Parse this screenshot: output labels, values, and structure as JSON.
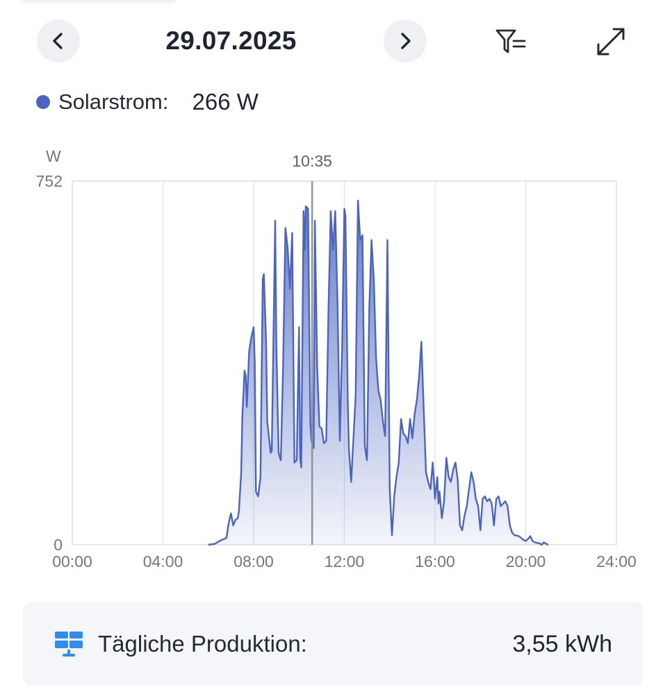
{
  "header": {
    "date": "29.07.2025"
  },
  "legend": {
    "label": "Solarstrom:",
    "value": "266 W",
    "color": "#4a64c0"
  },
  "icons": {
    "prev": "chevron-left-icon",
    "next": "chevron-right-icon",
    "filter": "filter-icon",
    "expand": "expand-icon",
    "solar": "solar-panel-icon"
  },
  "summary": {
    "label": "Tägliche Produktion:",
    "value": "3,55 kWh"
  },
  "chart_data": {
    "type": "area",
    "ylabel": "W",
    "ylim": [
      0,
      752
    ],
    "yticks": [
      "0",
      "752"
    ],
    "xlim": [
      0,
      24
    ],
    "xticks": [
      "00:00",
      "04:00",
      "08:00",
      "12:00",
      "16:00",
      "20:00",
      "24:00"
    ],
    "cursor": {
      "x": 10.58,
      "label": "10:35"
    },
    "grid": true,
    "series": [
      {
        "color": "#4a64c0",
        "points": [
          [
            6.0,
            0
          ],
          [
            6.3,
            2
          ],
          [
            6.5,
            8
          ],
          [
            6.8,
            14
          ],
          [
            6.9,
            45
          ],
          [
            7.0,
            65
          ],
          [
            7.1,
            40
          ],
          [
            7.2,
            52
          ],
          [
            7.3,
            55
          ],
          [
            7.35,
            70
          ],
          [
            7.45,
            150
          ],
          [
            7.5,
            265
          ],
          [
            7.6,
            360
          ],
          [
            7.65,
            350
          ],
          [
            7.7,
            285
          ],
          [
            7.8,
            400
          ],
          [
            7.9,
            430
          ],
          [
            8.0,
            450
          ],
          [
            8.05,
            380
          ],
          [
            8.1,
            110
          ],
          [
            8.2,
            100
          ],
          [
            8.3,
            140
          ],
          [
            8.4,
            550
          ],
          [
            8.45,
            560
          ],
          [
            8.55,
            420
          ],
          [
            8.6,
            255
          ],
          [
            8.75,
            190
          ],
          [
            8.8,
            195
          ],
          [
            8.95,
            670
          ],
          [
            9.0,
            420
          ],
          [
            9.1,
            190
          ],
          [
            9.2,
            175
          ],
          [
            9.3,
            370
          ],
          [
            9.4,
            655
          ],
          [
            9.5,
            615
          ],
          [
            9.6,
            530
          ],
          [
            9.7,
            645
          ],
          [
            9.8,
            170
          ],
          [
            9.9,
            175
          ],
          [
            10.0,
            450
          ],
          [
            10.05,
            180
          ],
          [
            10.1,
            160
          ],
          [
            10.2,
            690
          ],
          [
            10.25,
            610
          ],
          [
            10.3,
            700
          ],
          [
            10.4,
            695
          ],
          [
            10.5,
            250
          ],
          [
            10.55,
            215
          ],
          [
            10.65,
            200
          ],
          [
            10.7,
            670
          ],
          [
            10.8,
            370
          ],
          [
            10.9,
            245
          ],
          [
            11.0,
            240
          ],
          [
            11.1,
            210
          ],
          [
            11.2,
            215
          ],
          [
            11.3,
            490
          ],
          [
            11.4,
            690
          ],
          [
            11.5,
            610
          ],
          [
            11.6,
            690
          ],
          [
            11.7,
            500
          ],
          [
            11.8,
            215
          ],
          [
            11.9,
            400
          ],
          [
            12.0,
            695
          ],
          [
            12.05,
            680
          ],
          [
            12.15,
            300
          ],
          [
            12.2,
            200
          ],
          [
            12.3,
            130
          ],
          [
            12.4,
            220
          ],
          [
            12.5,
            310
          ],
          [
            12.6,
            712
          ],
          [
            12.7,
            630
          ],
          [
            12.8,
            640
          ],
          [
            12.9,
            205
          ],
          [
            13.0,
            175
          ],
          [
            13.1,
            490
          ],
          [
            13.2,
            630
          ],
          [
            13.3,
            550
          ],
          [
            13.4,
            385
          ],
          [
            13.5,
            320
          ],
          [
            13.6,
            300
          ],
          [
            13.7,
            255
          ],
          [
            13.8,
            225
          ],
          [
            13.9,
            630
          ],
          [
            14.0,
            115
          ],
          [
            14.1,
            20
          ],
          [
            14.2,
            100
          ],
          [
            14.3,
            140
          ],
          [
            14.4,
            170
          ],
          [
            14.5,
            260
          ],
          [
            14.6,
            230
          ],
          [
            14.7,
            225
          ],
          [
            14.8,
            210
          ],
          [
            14.9,
            260
          ],
          [
            15.0,
            220
          ],
          [
            15.1,
            270
          ],
          [
            15.2,
            300
          ],
          [
            15.3,
            350
          ],
          [
            15.4,
            420
          ],
          [
            15.5,
            280
          ],
          [
            15.6,
            150
          ],
          [
            15.7,
            130
          ],
          [
            15.8,
            115
          ],
          [
            15.9,
            170
          ],
          [
            16.0,
            95
          ],
          [
            16.1,
            140
          ],
          [
            16.15,
            85
          ],
          [
            16.2,
            110
          ],
          [
            16.3,
            55
          ],
          [
            16.4,
            90
          ],
          [
            16.5,
            180
          ],
          [
            16.6,
            140
          ],
          [
            16.7,
            130
          ],
          [
            16.8,
            155
          ],
          [
            16.9,
            170
          ],
          [
            17.0,
            135
          ],
          [
            17.1,
            40
          ],
          [
            17.2,
            30
          ],
          [
            17.3,
            60
          ],
          [
            17.4,
            80
          ],
          [
            17.5,
            115
          ],
          [
            17.6,
            150
          ],
          [
            17.7,
            130
          ],
          [
            17.8,
            95
          ],
          [
            17.9,
            80
          ],
          [
            18.0,
            30
          ],
          [
            18.1,
            95
          ],
          [
            18.2,
            100
          ],
          [
            18.3,
            90
          ],
          [
            18.4,
            95
          ],
          [
            18.5,
            85
          ],
          [
            18.6,
            40
          ],
          [
            18.7,
            95
          ],
          [
            18.8,
            100
          ],
          [
            18.9,
            80
          ],
          [
            19.0,
            85
          ],
          [
            19.1,
            90
          ],
          [
            19.2,
            80
          ],
          [
            19.3,
            40
          ],
          [
            19.4,
            25
          ],
          [
            19.5,
            20
          ],
          [
            19.7,
            18
          ],
          [
            19.9,
            10
          ],
          [
            20.0,
            8
          ],
          [
            20.1,
            12
          ],
          [
            20.2,
            18
          ],
          [
            20.3,
            8
          ],
          [
            20.4,
            5
          ],
          [
            20.5,
            4
          ],
          [
            20.6,
            3
          ],
          [
            20.7,
            0
          ],
          [
            20.8,
            5
          ],
          [
            20.9,
            2
          ],
          [
            21.0,
            0
          ]
        ]
      }
    ]
  }
}
